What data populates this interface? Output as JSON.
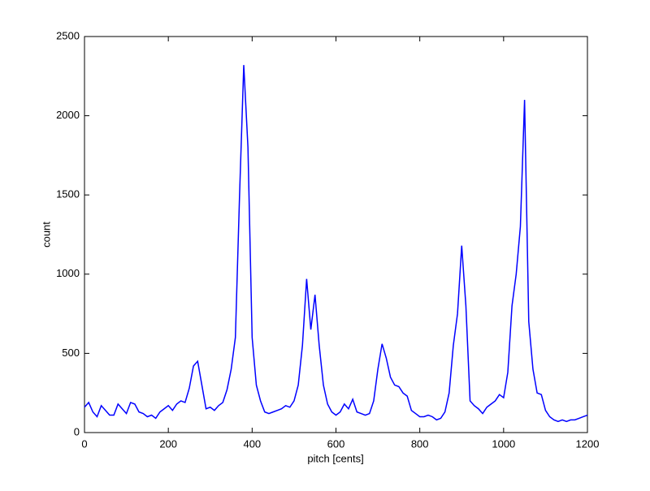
{
  "chart_data": {
    "type": "line",
    "xlabel": "pitch [cents]",
    "ylabel": "count",
    "xlim": [
      0,
      1200
    ],
    "ylim": [
      0,
      2500
    ],
    "xticks": [
      0,
      200,
      400,
      600,
      800,
      1000,
      1200
    ],
    "yticks": [
      0,
      500,
      1000,
      1500,
      2000,
      2500
    ],
    "x": [
      0,
      10,
      20,
      30,
      40,
      50,
      60,
      70,
      80,
      90,
      100,
      110,
      120,
      130,
      140,
      150,
      160,
      170,
      180,
      190,
      200,
      210,
      220,
      230,
      240,
      250,
      260,
      270,
      280,
      290,
      300,
      310,
      320,
      330,
      340,
      350,
      360,
      370,
      380,
      390,
      400,
      410,
      420,
      430,
      440,
      450,
      460,
      470,
      480,
      490,
      500,
      510,
      520,
      530,
      540,
      550,
      560,
      570,
      580,
      590,
      600,
      610,
      620,
      630,
      640,
      650,
      660,
      670,
      680,
      690,
      700,
      710,
      720,
      730,
      740,
      750,
      760,
      770,
      780,
      790,
      800,
      810,
      820,
      830,
      840,
      850,
      860,
      870,
      880,
      890,
      900,
      910,
      920,
      930,
      940,
      950,
      960,
      970,
      980,
      990,
      1000,
      1010,
      1020,
      1030,
      1040,
      1050,
      1060,
      1070,
      1080,
      1090,
      1100,
      1110,
      1120,
      1130,
      1140,
      1150,
      1160,
      1170,
      1180,
      1190,
      1200
    ],
    "series": [
      {
        "color": "#0000ff",
        "values": [
          160,
          190,
          130,
          100,
          170,
          140,
          110,
          110,
          180,
          150,
          120,
          190,
          180,
          130,
          120,
          100,
          110,
          90,
          130,
          150,
          170,
          140,
          180,
          200,
          190,
          280,
          420,
          450,
          300,
          150,
          160,
          140,
          170,
          190,
          270,
          400,
          600,
          1500,
          2320,
          1800,
          600,
          300,
          200,
          130,
          120,
          130,
          140,
          150,
          170,
          160,
          200,
          300,
          550,
          970,
          650,
          870,
          550,
          300,
          180,
          130,
          110,
          130,
          180,
          150,
          210,
          130,
          120,
          110,
          120,
          200,
          400,
          560,
          470,
          350,
          300,
          290,
          250,
          230,
          140,
          120,
          100,
          100,
          110,
          100,
          80,
          90,
          130,
          250,
          550,
          750,
          1180,
          800,
          200,
          170,
          150,
          120,
          160,
          180,
          200,
          240,
          220,
          380,
          800,
          1000,
          1300,
          2100,
          700,
          400,
          250,
          240,
          140,
          100,
          80,
          70,
          80,
          70,
          80,
          80,
          90,
          100,
          110
        ]
      }
    ]
  }
}
